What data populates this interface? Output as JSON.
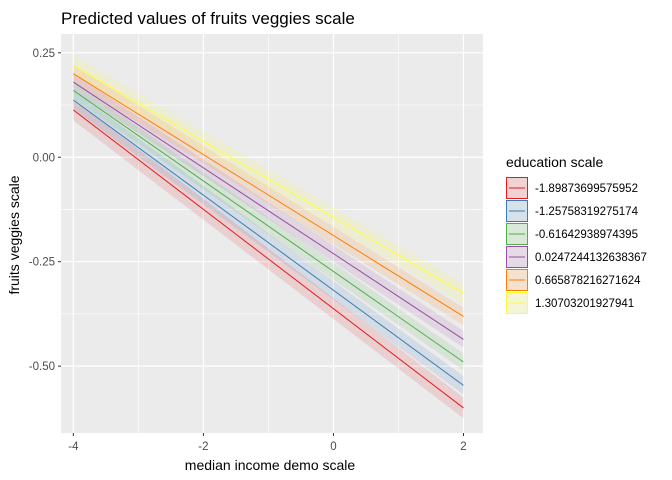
{
  "chart_data": {
    "type": "line",
    "title": "Predicted values of fruits veggies scale",
    "xlabel": "median income demo scale",
    "ylabel": "fruits veggies scale",
    "xlim": [
      -4.19,
      2.3
    ],
    "ylim": [
      -0.66,
      0.295
    ],
    "x_ticks": [
      -4,
      -2,
      0,
      2
    ],
    "x_tick_labels": [
      "-4",
      "-2",
      "0",
      "2"
    ],
    "y_ticks": [
      0.25,
      0.0,
      -0.25,
      -0.5
    ],
    "y_tick_labels": [
      "0.25",
      "0.00",
      "-0.25",
      "-0.50"
    ],
    "grid": true,
    "legend": {
      "title": "education scale",
      "position": "right"
    },
    "series": [
      {
        "name": "-1.89873699575952",
        "color": "#e41a1c",
        "x": [
          -4,
          2
        ],
        "y": [
          0.113,
          -0.6
        ],
        "ci_half_width": 0.025
      },
      {
        "name": "-1.25758319275174",
        "color": "#377eb8",
        "x": [
          -4,
          2
        ],
        "y": [
          0.137,
          -0.546
        ],
        "ci_half_width": 0.022
      },
      {
        "name": "-0.61642938974395",
        "color": "#4daf4a",
        "x": [
          -4,
          2
        ],
        "y": [
          0.16,
          -0.49
        ],
        "ci_half_width": 0.02
      },
      {
        "name": "0.0247244132638367",
        "color": "#984ea3",
        "x": [
          -4,
          2
        ],
        "y": [
          0.18,
          -0.436
        ],
        "ci_half_width": 0.02
      },
      {
        "name": "0.665878216271624",
        "color": "#ff7f00",
        "x": [
          -4,
          2
        ],
        "y": [
          0.2,
          -0.381
        ],
        "ci_half_width": 0.021
      },
      {
        "name": "1.30703201927941",
        "color": "#ffff33",
        "x": [
          -4,
          2
        ],
        "y": [
          0.22,
          -0.326
        ],
        "ci_half_width": 0.024
      }
    ]
  }
}
